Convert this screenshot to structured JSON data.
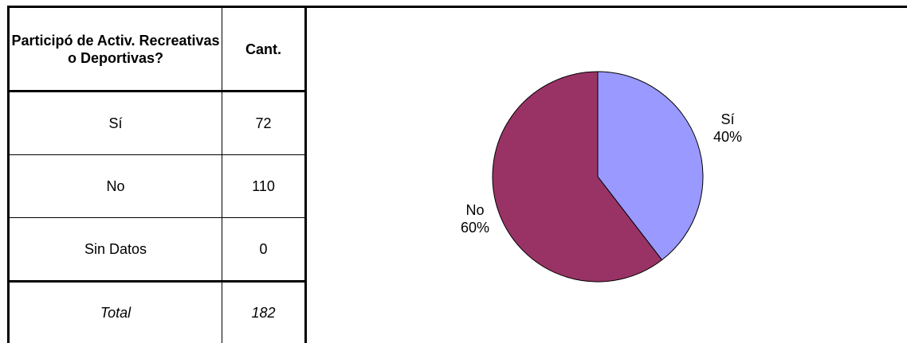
{
  "table": {
    "header": {
      "category": "Participó de Activ. Recreativas o Deportivas?",
      "count": "Cant."
    },
    "rows": [
      {
        "label": "Sí",
        "value": "72"
      },
      {
        "label": "No",
        "value": "110"
      },
      {
        "label": "Sin Datos",
        "value": "0"
      }
    ],
    "total": {
      "label": "Total",
      "value": "182"
    }
  },
  "chart_data": {
    "type": "pie",
    "title": "",
    "slices": [
      {
        "label": "Sí",
        "percent_label": "40%",
        "value": 72,
        "color": "#9999ff"
      },
      {
        "label": "No",
        "percent_label": "60%",
        "value": 110,
        "color": "#993366"
      }
    ],
    "start_angle": "top",
    "direction": "clockwise",
    "legend": "none"
  }
}
